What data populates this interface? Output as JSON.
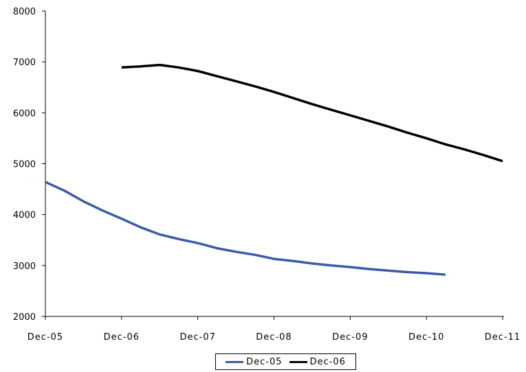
{
  "chart_data": {
    "type": "line",
    "title": "",
    "xlabel": "",
    "ylabel": "",
    "ylim": [
      2000,
      8000
    ],
    "yticks": [
      2000,
      3000,
      4000,
      5000,
      6000,
      7000,
      8000
    ],
    "xlim": [
      0,
      6
    ],
    "xticks": [
      {
        "pos": 0,
        "label": "Dec-05"
      },
      {
        "pos": 1,
        "label": "Dec-06"
      },
      {
        "pos": 2,
        "label": "Dec-07"
      },
      {
        "pos": 3,
        "label": "Dec-08"
      },
      {
        "pos": 4,
        "label": "Dec-09"
      },
      {
        "pos": 5,
        "label": "Dec-10"
      },
      {
        "pos": 6,
        "label": "Dec-11"
      }
    ],
    "grid": false,
    "legend_position": "bottom",
    "series": [
      {
        "name": "Dec-05",
        "color": "#3a5ba8",
        "x": [
          0,
          0.25,
          0.5,
          0.75,
          1.0,
          1.25,
          1.5,
          1.75,
          2.0,
          2.25,
          2.5,
          2.75,
          3.0,
          3.25,
          3.5,
          3.75,
          4.0,
          4.25,
          4.5,
          4.75,
          5.0,
          5.25
        ],
        "y": [
          4640,
          4470,
          4260,
          4080,
          3920,
          3750,
          3610,
          3520,
          3440,
          3340,
          3270,
          3210,
          3130,
          3090,
          3040,
          3000,
          2970,
          2930,
          2900,
          2870,
          2850,
          2820
        ]
      },
      {
        "name": "Dec-06",
        "color": "#000000",
        "x": [
          1.0,
          1.25,
          1.5,
          1.75,
          2.0,
          2.25,
          2.5,
          2.75,
          3.0,
          3.25,
          3.5,
          3.75,
          4.0,
          4.25,
          4.5,
          4.75,
          5.0,
          5.25,
          5.5,
          5.75,
          6.0
        ],
        "y": [
          6890,
          6910,
          6940,
          6890,
          6820,
          6720,
          6620,
          6520,
          6410,
          6290,
          6170,
          6060,
          5950,
          5840,
          5730,
          5610,
          5500,
          5380,
          5280,
          5170,
          5050
        ]
      }
    ]
  }
}
